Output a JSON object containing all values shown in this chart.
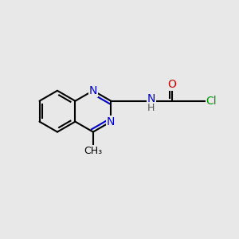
{
  "background_color": "#e8e8e8",
  "atom_colors": {
    "C": "#000000",
    "N": "#0000cc",
    "O": "#cc0000",
    "Cl": "#009900",
    "H": "#555555"
  },
  "bond_color": "#000000",
  "bond_width": 1.5,
  "figsize": [
    3.0,
    3.0
  ],
  "dpi": 100,
  "hex_r": 0.88
}
